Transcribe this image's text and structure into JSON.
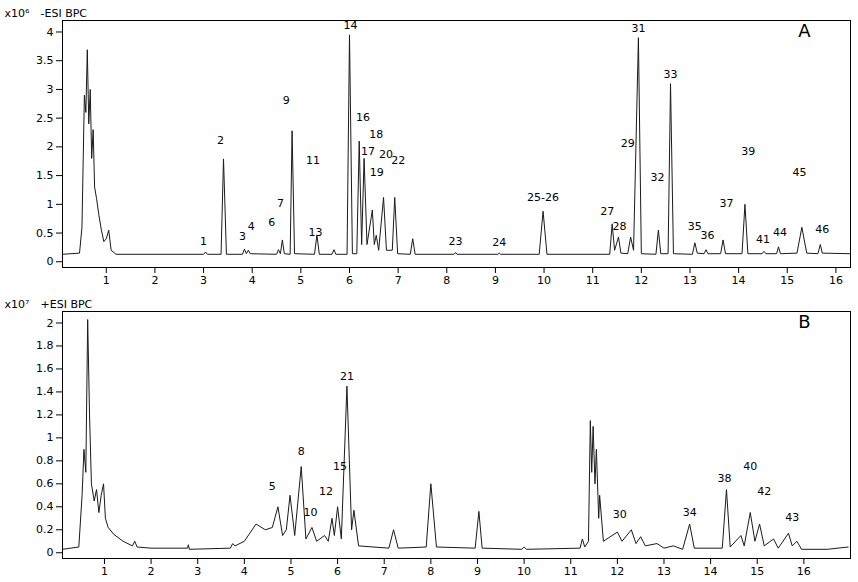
{
  "chart_data": [
    {
      "type": "line",
      "title": "-ESI BPC",
      "panel_label": "A",
      "ylabel": "x10⁶",
      "color": "#1a1a1a",
      "grid": false,
      "xlim": [
        0.1,
        16.3
      ],
      "xticks": [
        1,
        2,
        3,
        4,
        5,
        6,
        7,
        8,
        9,
        10,
        11,
        12,
        13,
        14,
        15,
        16
      ],
      "ylim": [
        -0.1,
        4.2
      ],
      "yticks": [
        0,
        0.5,
        1,
        1.5,
        2,
        2.5,
        3,
        3.5,
        4
      ],
      "x": [
        0.1,
        0.45,
        0.5,
        0.55,
        0.58,
        0.61,
        0.64,
        0.67,
        0.7,
        0.73,
        0.76,
        0.8,
        0.85,
        0.9,
        0.95,
        1.0,
        1.05,
        1.1,
        1.2,
        3.0,
        3.04,
        3.08,
        3.36,
        3.41,
        3.47,
        3.8,
        3.84,
        3.88,
        3.92,
        3.96,
        4.5,
        4.54,
        4.58,
        4.62,
        4.66,
        4.78,
        4.82,
        4.87,
        5.28,
        5.33,
        5.38,
        5.64,
        5.68,
        5.72,
        5.95,
        6.0,
        6.06,
        6.15,
        6.2,
        6.25,
        6.3,
        6.36,
        6.47,
        6.51,
        6.55,
        6.6,
        6.7,
        6.76,
        6.88,
        6.93,
        6.99,
        7.25,
        7.3,
        7.35,
        8.15,
        8.18,
        8.21,
        9.05,
        9.08,
        9.11,
        9.9,
        9.98,
        10.06,
        11.35,
        11.4,
        11.45,
        11.53,
        11.58,
        11.72,
        11.78,
        11.84,
        11.94,
        12.0,
        12.3,
        12.35,
        12.4,
        12.55,
        12.6,
        12.66,
        13.05,
        13.1,
        13.15,
        13.29,
        13.33,
        13.37,
        13.63,
        13.68,
        13.73,
        14.07,
        14.13,
        14.19,
        14.48,
        14.52,
        14.56,
        14.78,
        14.82,
        14.86,
        15.2,
        15.3,
        15.4,
        15.63,
        15.68,
        15.72,
        16.3
      ],
      "values": [
        0.13,
        0.15,
        0.6,
        2.9,
        2.6,
        3.69,
        2.4,
        3.0,
        1.8,
        2.3,
        1.3,
        1.1,
        0.8,
        0.55,
        0.35,
        0.4,
        0.55,
        0.2,
        0.13,
        0.13,
        0.17,
        0.13,
        0.13,
        1.79,
        0.13,
        0.13,
        0.22,
        0.14,
        0.2,
        0.14,
        0.13,
        0.21,
        0.14,
        0.38,
        0.14,
        0.13,
        2.28,
        0.14,
        0.13,
        0.46,
        0.13,
        0.13,
        0.21,
        0.13,
        0.13,
        3.95,
        0.14,
        0.14,
        2.1,
        0.3,
        1.8,
        0.3,
        0.9,
        0.3,
        0.46,
        0.2,
        1.12,
        0.2,
        0.2,
        1.12,
        0.14,
        0.13,
        0.4,
        0.13,
        0.13,
        0.16,
        0.13,
        0.13,
        0.15,
        0.13,
        0.13,
        0.88,
        0.13,
        0.13,
        0.66,
        0.2,
        0.43,
        0.15,
        0.14,
        0.43,
        0.2,
        3.9,
        0.14,
        0.13,
        0.55,
        0.14,
        0.14,
        3.1,
        0.14,
        0.13,
        0.33,
        0.15,
        0.14,
        0.21,
        0.14,
        0.14,
        0.38,
        0.14,
        0.14,
        1.0,
        0.14,
        0.14,
        0.18,
        0.14,
        0.14,
        0.26,
        0.14,
        0.15,
        0.6,
        0.15,
        0.14,
        0.3,
        0.15,
        0.14
      ],
      "annotations": [
        {
          "text": "1",
          "x": 3.0,
          "y": 0.3
        },
        {
          "text": "2",
          "x": 3.35,
          "y": 2.05
        },
        {
          "text": "3",
          "x": 3.8,
          "y": 0.38
        },
        {
          "text": "4",
          "x": 3.98,
          "y": 0.55
        },
        {
          "text": "6",
          "x": 4.4,
          "y": 0.62
        },
        {
          "text": "7",
          "x": 4.58,
          "y": 0.95
        },
        {
          "text": "9",
          "x": 4.7,
          "y": 2.75
        },
        {
          "text": "11",
          "x": 5.25,
          "y": 1.7
        },
        {
          "text": "13",
          "x": 5.3,
          "y": 0.45
        },
        {
          "text": "14",
          "x": 6.02,
          "y": 4.05
        },
        {
          "text": "16",
          "x": 6.28,
          "y": 2.45
        },
        {
          "text": "17",
          "x": 6.38,
          "y": 1.85
        },
        {
          "text": "18",
          "x": 6.55,
          "y": 2.15
        },
        {
          "text": "19",
          "x": 6.56,
          "y": 1.5
        },
        {
          "text": "20",
          "x": 6.75,
          "y": 1.8
        },
        {
          "text": "22",
          "x": 7.0,
          "y": 1.7
        },
        {
          "text": "23",
          "x": 8.18,
          "y": 0.3
        },
        {
          "text": "24",
          "x": 9.08,
          "y": 0.28
        },
        {
          "text": "25-26",
          "x": 9.98,
          "y": 1.05
        },
        {
          "text": "27",
          "x": 11.3,
          "y": 0.82
        },
        {
          "text": "28",
          "x": 11.55,
          "y": 0.55
        },
        {
          "text": "29",
          "x": 11.72,
          "y": 2.0
        },
        {
          "text": "31",
          "x": 11.94,
          "y": 4.0
        },
        {
          "text": "32",
          "x": 12.33,
          "y": 1.4
        },
        {
          "text": "33",
          "x": 12.6,
          "y": 3.2
        },
        {
          "text": "35",
          "x": 13.1,
          "y": 0.55
        },
        {
          "text": "36",
          "x": 13.36,
          "y": 0.4
        },
        {
          "text": "37",
          "x": 13.75,
          "y": 0.95
        },
        {
          "text": "39",
          "x": 14.2,
          "y": 1.85
        },
        {
          "text": "41",
          "x": 14.5,
          "y": 0.33
        },
        {
          "text": "44",
          "x": 14.85,
          "y": 0.45
        },
        {
          "text": "45",
          "x": 15.25,
          "y": 1.5
        },
        {
          "text": "46",
          "x": 15.72,
          "y": 0.5
        }
      ]
    },
    {
      "type": "line",
      "title": "+ESI BPC",
      "panel_label": "B",
      "ylabel": "x10⁷",
      "color": "#1a1a1a",
      "grid": false,
      "xlim": [
        0.1,
        17.0
      ],
      "xticks": [
        1,
        2,
        3,
        4,
        5,
        6,
        7,
        8,
        9,
        10,
        11,
        12,
        13,
        14,
        15,
        16
      ],
      "ylim": [
        -0.05,
        2.1
      ],
      "yticks": [
        0,
        0.2,
        0.4,
        0.6,
        0.8,
        1,
        1.2,
        1.4,
        1.6,
        1.8,
        2
      ],
      "x": [
        0.1,
        0.45,
        0.52,
        0.56,
        0.6,
        0.64,
        0.68,
        0.72,
        0.78,
        0.83,
        0.88,
        0.93,
        0.98,
        1.02,
        1.08,
        1.2,
        1.4,
        1.6,
        1.65,
        1.7,
        2.0,
        2.78,
        2.8,
        2.82,
        3.7,
        3.75,
        3.8,
        4.0,
        4.25,
        4.45,
        4.6,
        4.72,
        4.82,
        4.9,
        4.98,
        5.08,
        5.22,
        5.32,
        5.45,
        5.55,
        5.72,
        5.8,
        5.88,
        5.93,
        6.0,
        6.08,
        6.2,
        6.3,
        6.35,
        6.45,
        7.1,
        7.2,
        7.3,
        7.9,
        8.0,
        8.12,
        8.95,
        9.03,
        9.1,
        9.95,
        10.0,
        10.05,
        11.2,
        11.25,
        11.3,
        11.38,
        11.42,
        11.45,
        11.48,
        11.52,
        11.55,
        11.6,
        11.62,
        11.7,
        12.0,
        12.1,
        12.3,
        12.4,
        12.5,
        12.6,
        12.85,
        13.0,
        13.2,
        13.4,
        13.55,
        13.65,
        14.25,
        14.34,
        14.42,
        14.65,
        14.72,
        14.85,
        14.95,
        15.05,
        15.15,
        15.35,
        15.45,
        15.67,
        15.75,
        15.85,
        15.95,
        16.5,
        16.95
      ],
      "values": [
        0.03,
        0.05,
        0.5,
        0.9,
        0.7,
        2.03,
        1.2,
        0.6,
        0.45,
        0.55,
        0.35,
        0.5,
        0.6,
        0.3,
        0.22,
        0.16,
        0.1,
        0.06,
        0.1,
        0.05,
        0.04,
        0.04,
        0.07,
        0.03,
        0.04,
        0.08,
        0.06,
        0.1,
        0.25,
        0.2,
        0.22,
        0.4,
        0.15,
        0.2,
        0.5,
        0.15,
        0.75,
        0.12,
        0.22,
        0.1,
        0.15,
        0.1,
        0.3,
        0.15,
        0.4,
        0.12,
        1.45,
        0.2,
        0.37,
        0.06,
        0.04,
        0.2,
        0.04,
        0.05,
        0.6,
        0.05,
        0.04,
        0.36,
        0.04,
        0.03,
        0.05,
        0.03,
        0.04,
        0.12,
        0.05,
        0.1,
        1.15,
        0.7,
        1.1,
        0.6,
        0.9,
        0.3,
        0.5,
        0.1,
        0.18,
        0.1,
        0.2,
        0.08,
        0.14,
        0.06,
        0.08,
        0.04,
        0.06,
        0.03,
        0.25,
        0.04,
        0.04,
        0.55,
        0.05,
        0.15,
        0.06,
        0.35,
        0.1,
        0.25,
        0.06,
        0.12,
        0.04,
        0.17,
        0.06,
        0.1,
        0.03,
        0.03,
        0.05
      ],
      "annotations": [
        {
          "text": "5",
          "x": 4.6,
          "y": 0.55
        },
        {
          "text": "8",
          "x": 5.22,
          "y": 0.85
        },
        {
          "text": "10",
          "x": 5.42,
          "y": 0.32
        },
        {
          "text": "12",
          "x": 5.75,
          "y": 0.5
        },
        {
          "text": "15",
          "x": 6.05,
          "y": 0.72
        },
        {
          "text": "21",
          "x": 6.2,
          "y": 1.5
        },
        {
          "text": "30",
          "x": 12.05,
          "y": 0.3
        },
        {
          "text": "34",
          "x": 13.55,
          "y": 0.32
        },
        {
          "text": "38",
          "x": 14.3,
          "y": 0.62
        },
        {
          "text": "40",
          "x": 14.85,
          "y": 0.72
        },
        {
          "text": "42",
          "x": 15.15,
          "y": 0.5
        },
        {
          "text": "43",
          "x": 15.75,
          "y": 0.28
        }
      ]
    }
  ]
}
